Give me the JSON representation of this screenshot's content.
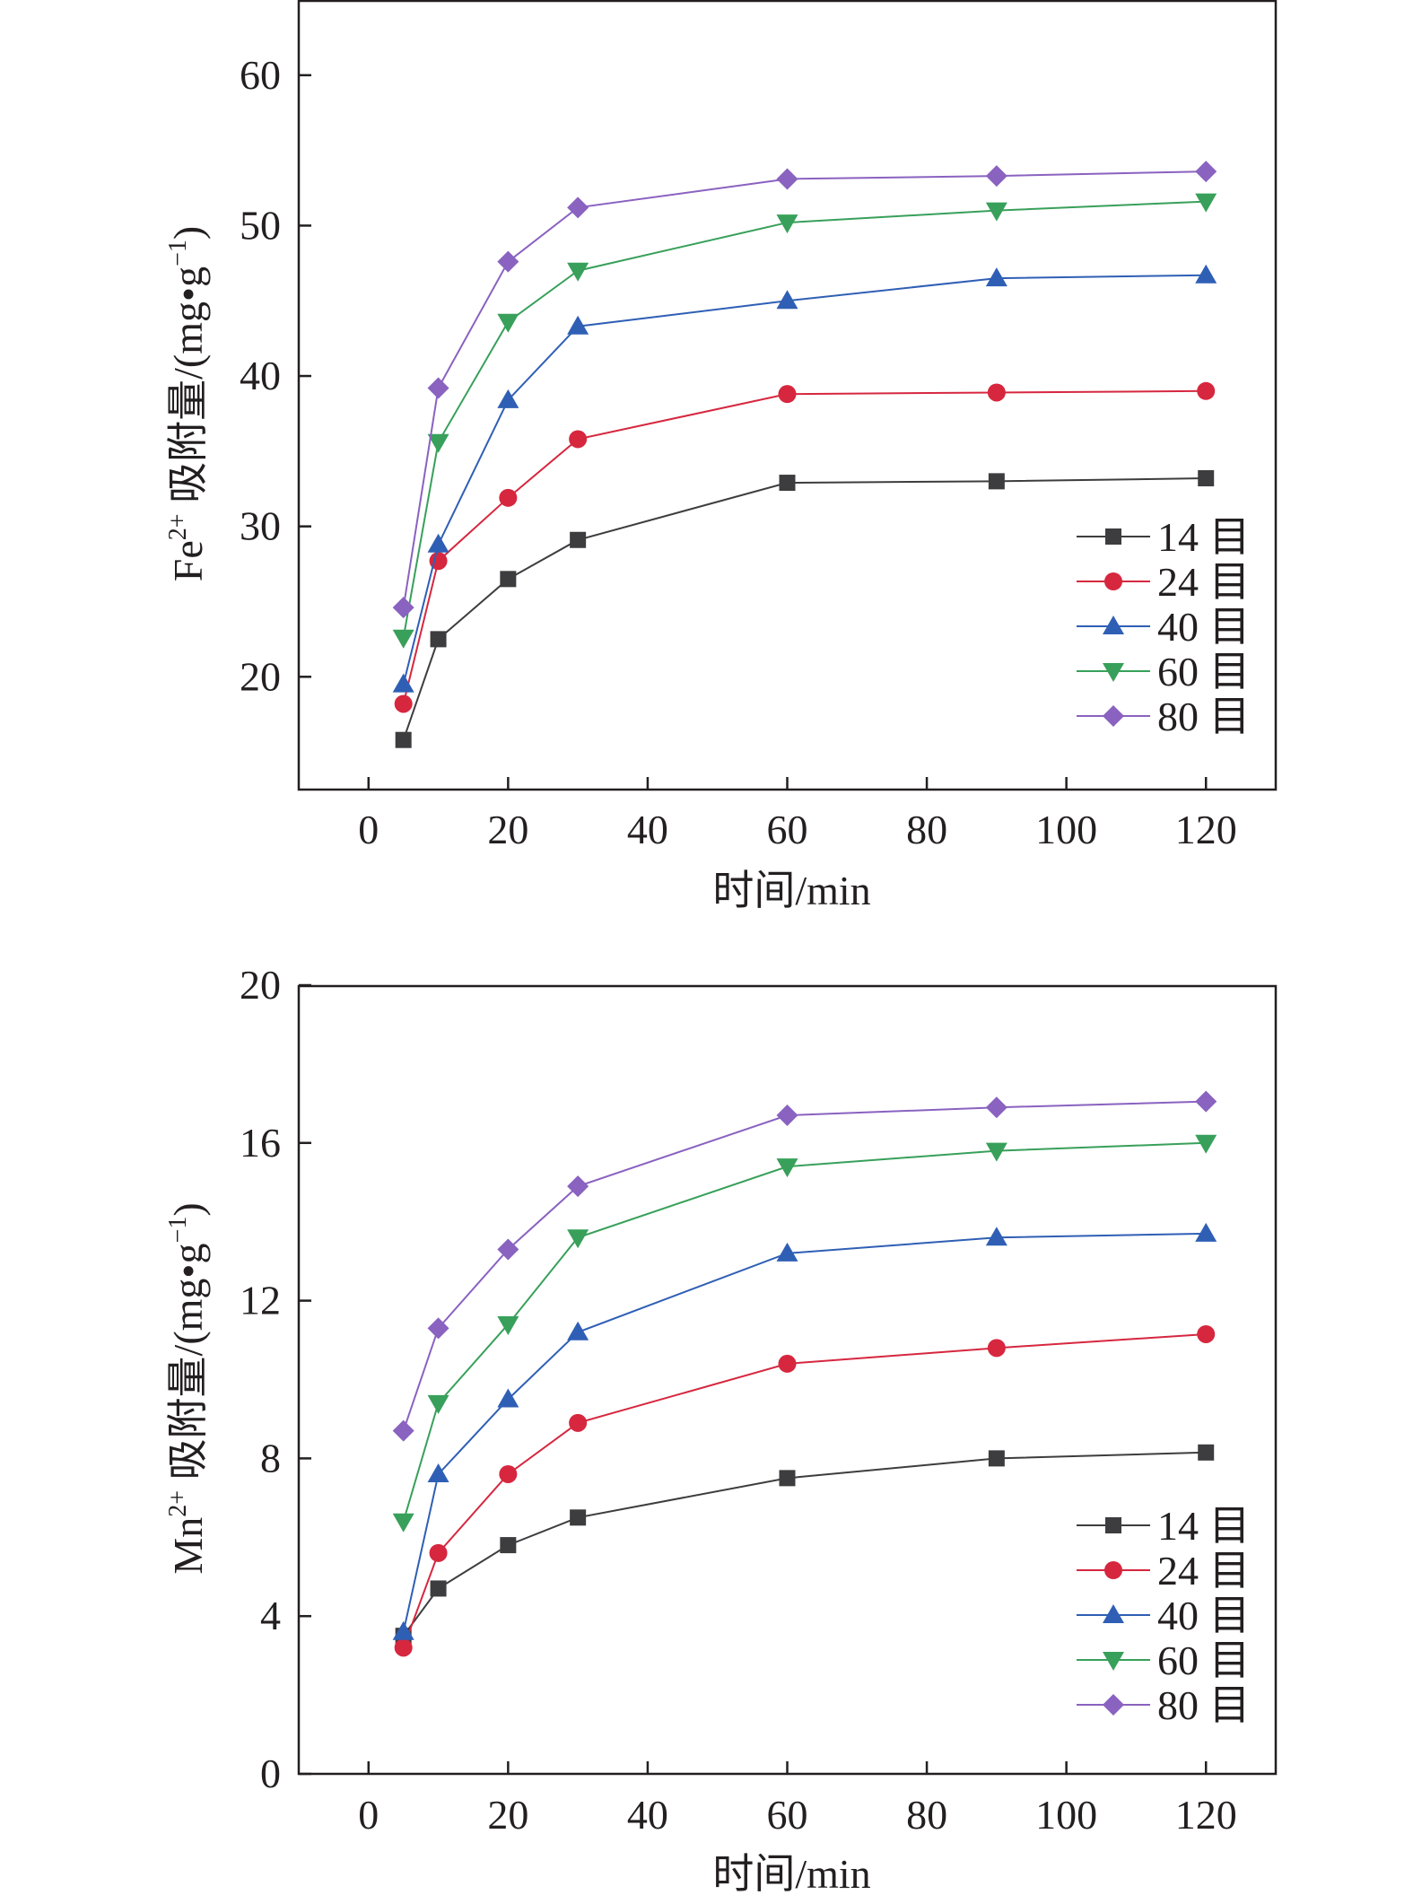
{
  "colors": {
    "axis": "#231f20",
    "14": "#3d3d3f",
    "24": "#d6273f",
    "40": "#2f5fb5",
    "60": "#38a05a",
    "80": "#8a62c0"
  },
  "chart_data": [
    {
      "type": "line",
      "xlabel": "时间/min",
      "ylabel_main": "Fe",
      "ylabel_sup": "2+",
      "ylabel_rest": " 吸附量/(mg•g",
      "ylabel_unit_sup": "−1",
      "ylabel_close": ")",
      "xlim": [
        -10,
        130
      ],
      "ylim": [
        12.5,
        65
      ],
      "xticks": [
        0,
        20,
        40,
        60,
        80,
        100,
        120
      ],
      "yticks": [
        20,
        30,
        40,
        50,
        60
      ],
      "x": [
        5,
        10,
        20,
        30,
        60,
        90,
        120
      ],
      "legend_position": "bottom-right",
      "series": [
        {
          "name": "14 目",
          "color_key": "14",
          "marker": "square",
          "values": [
            15.8,
            22.5,
            26.5,
            29.1,
            32.9,
            33.0,
            33.2
          ]
        },
        {
          "name": "24 目",
          "color_key": "24",
          "marker": "circle",
          "values": [
            18.2,
            27.7,
            31.9,
            35.8,
            38.8,
            38.9,
            39.0
          ]
        },
        {
          "name": "40 目",
          "color_key": "40",
          "marker": "triangle-up",
          "values": [
            19.5,
            28.8,
            38.4,
            43.3,
            45.0,
            46.5,
            46.7
          ]
        },
        {
          "name": "60 目",
          "color_key": "60",
          "marker": "triangle-down",
          "values": [
            22.6,
            35.6,
            43.6,
            47.0,
            50.2,
            51.0,
            51.6
          ]
        },
        {
          "name": "80 目",
          "color_key": "80",
          "marker": "diamond",
          "values": [
            24.6,
            39.2,
            47.6,
            51.2,
            53.1,
            53.3,
            53.6
          ]
        }
      ]
    },
    {
      "type": "line",
      "xlabel": "时间/min",
      "ylabel_main": "Mn",
      "ylabel_sup": "2+",
      "ylabel_rest": " 吸附量/(mg•g",
      "ylabel_unit_sup": "−1",
      "ylabel_close": ")",
      "xlim": [
        -10,
        130
      ],
      "ylim": [
        0,
        20
      ],
      "xticks": [
        0,
        20,
        40,
        60,
        80,
        100,
        120
      ],
      "yticks": [
        0,
        4,
        8,
        12,
        16,
        20
      ],
      "x": [
        5,
        10,
        20,
        30,
        60,
        90,
        120
      ],
      "legend_position": "bottom-right",
      "series": [
        {
          "name": "14 目",
          "color_key": "14",
          "marker": "square",
          "values": [
            3.5,
            4.7,
            5.8,
            6.5,
            7.5,
            8.0,
            8.15
          ]
        },
        {
          "name": "24 目",
          "color_key": "24",
          "marker": "circle",
          "values": [
            3.2,
            5.6,
            7.6,
            8.9,
            10.4,
            10.8,
            11.15
          ]
        },
        {
          "name": "40 目",
          "color_key": "40",
          "marker": "triangle-up",
          "values": [
            3.6,
            7.6,
            9.5,
            11.2,
            13.2,
            13.6,
            13.7
          ]
        },
        {
          "name": "60 目",
          "color_key": "60",
          "marker": "triangle-down",
          "values": [
            6.4,
            9.4,
            11.4,
            13.6,
            15.4,
            15.8,
            16.0
          ]
        },
        {
          "name": "80 目",
          "color_key": "80",
          "marker": "diamond",
          "values": [
            8.7,
            11.3,
            13.3,
            14.9,
            16.7,
            16.9,
            17.05
          ]
        }
      ]
    }
  ]
}
